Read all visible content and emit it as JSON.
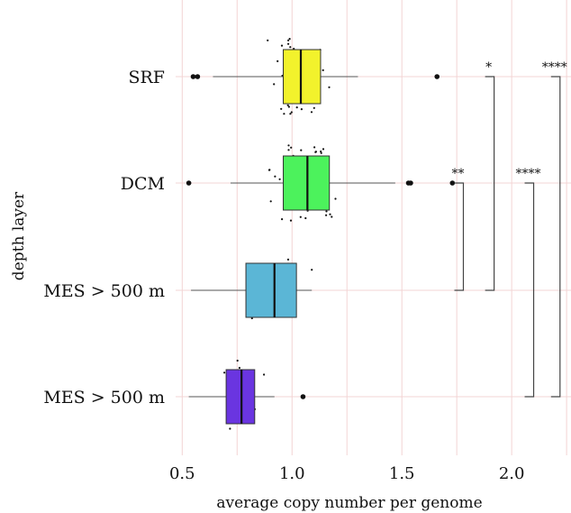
{
  "chart_data": {
    "type": "boxplot",
    "orientation": "horizontal",
    "xlabel": "average copy number per genome",
    "ylabel": "depth layer",
    "xlim": [
      0.47,
      2.27
    ],
    "xticks": [
      "0.5",
      "1.0",
      "1.5",
      "2.0"
    ],
    "xtick_values": [
      0.5,
      1.0,
      1.5,
      2.0
    ],
    "grid": true,
    "categories": [
      "SRF",
      "DCM",
      "MES > 500 m",
      "MES > 500 m"
    ],
    "boxes": [
      {
        "name": "SRF",
        "color": "#f2f22c",
        "whisker_low": 0.64,
        "q1": 0.96,
        "median": 1.04,
        "q3": 1.13,
        "whisker_high": 1.3,
        "outliers": [
          0.55,
          0.57,
          1.66
        ]
      },
      {
        "name": "DCM",
        "color": "#4cf25c",
        "whisker_low": 0.72,
        "q1": 0.96,
        "median": 1.07,
        "q3": 1.17,
        "whisker_high": 1.47,
        "outliers": [
          0.53,
          1.53,
          1.54,
          1.73
        ]
      },
      {
        "name": "MES > 500 m",
        "color": "#5bb6d6",
        "whisker_low": 0.54,
        "q1": 0.79,
        "median": 0.92,
        "q3": 1.02,
        "whisker_high": 1.09,
        "outliers": []
      },
      {
        "name": "MES > 500 m",
        "color": "#6a35e0",
        "whisker_low": 0.53,
        "q1": 0.7,
        "median": 0.77,
        "q3": 0.83,
        "whisker_high": 0.92,
        "outliers": [
          1.05
        ]
      }
    ],
    "significance": [
      {
        "from": 0,
        "to": 2,
        "label": "*",
        "x": 1.92
      },
      {
        "from": 0,
        "to": 3,
        "label": "****",
        "x": 2.22
      },
      {
        "from": 1,
        "to": 2,
        "label": "**",
        "x": 1.78
      },
      {
        "from": 1,
        "to": 3,
        "label": "****",
        "x": 2.1
      }
    ],
    "colors": {
      "grid": "#f3d4d4",
      "box_stroke": "#333333",
      "whisker": "#555555",
      "point": "#111111"
    }
  }
}
